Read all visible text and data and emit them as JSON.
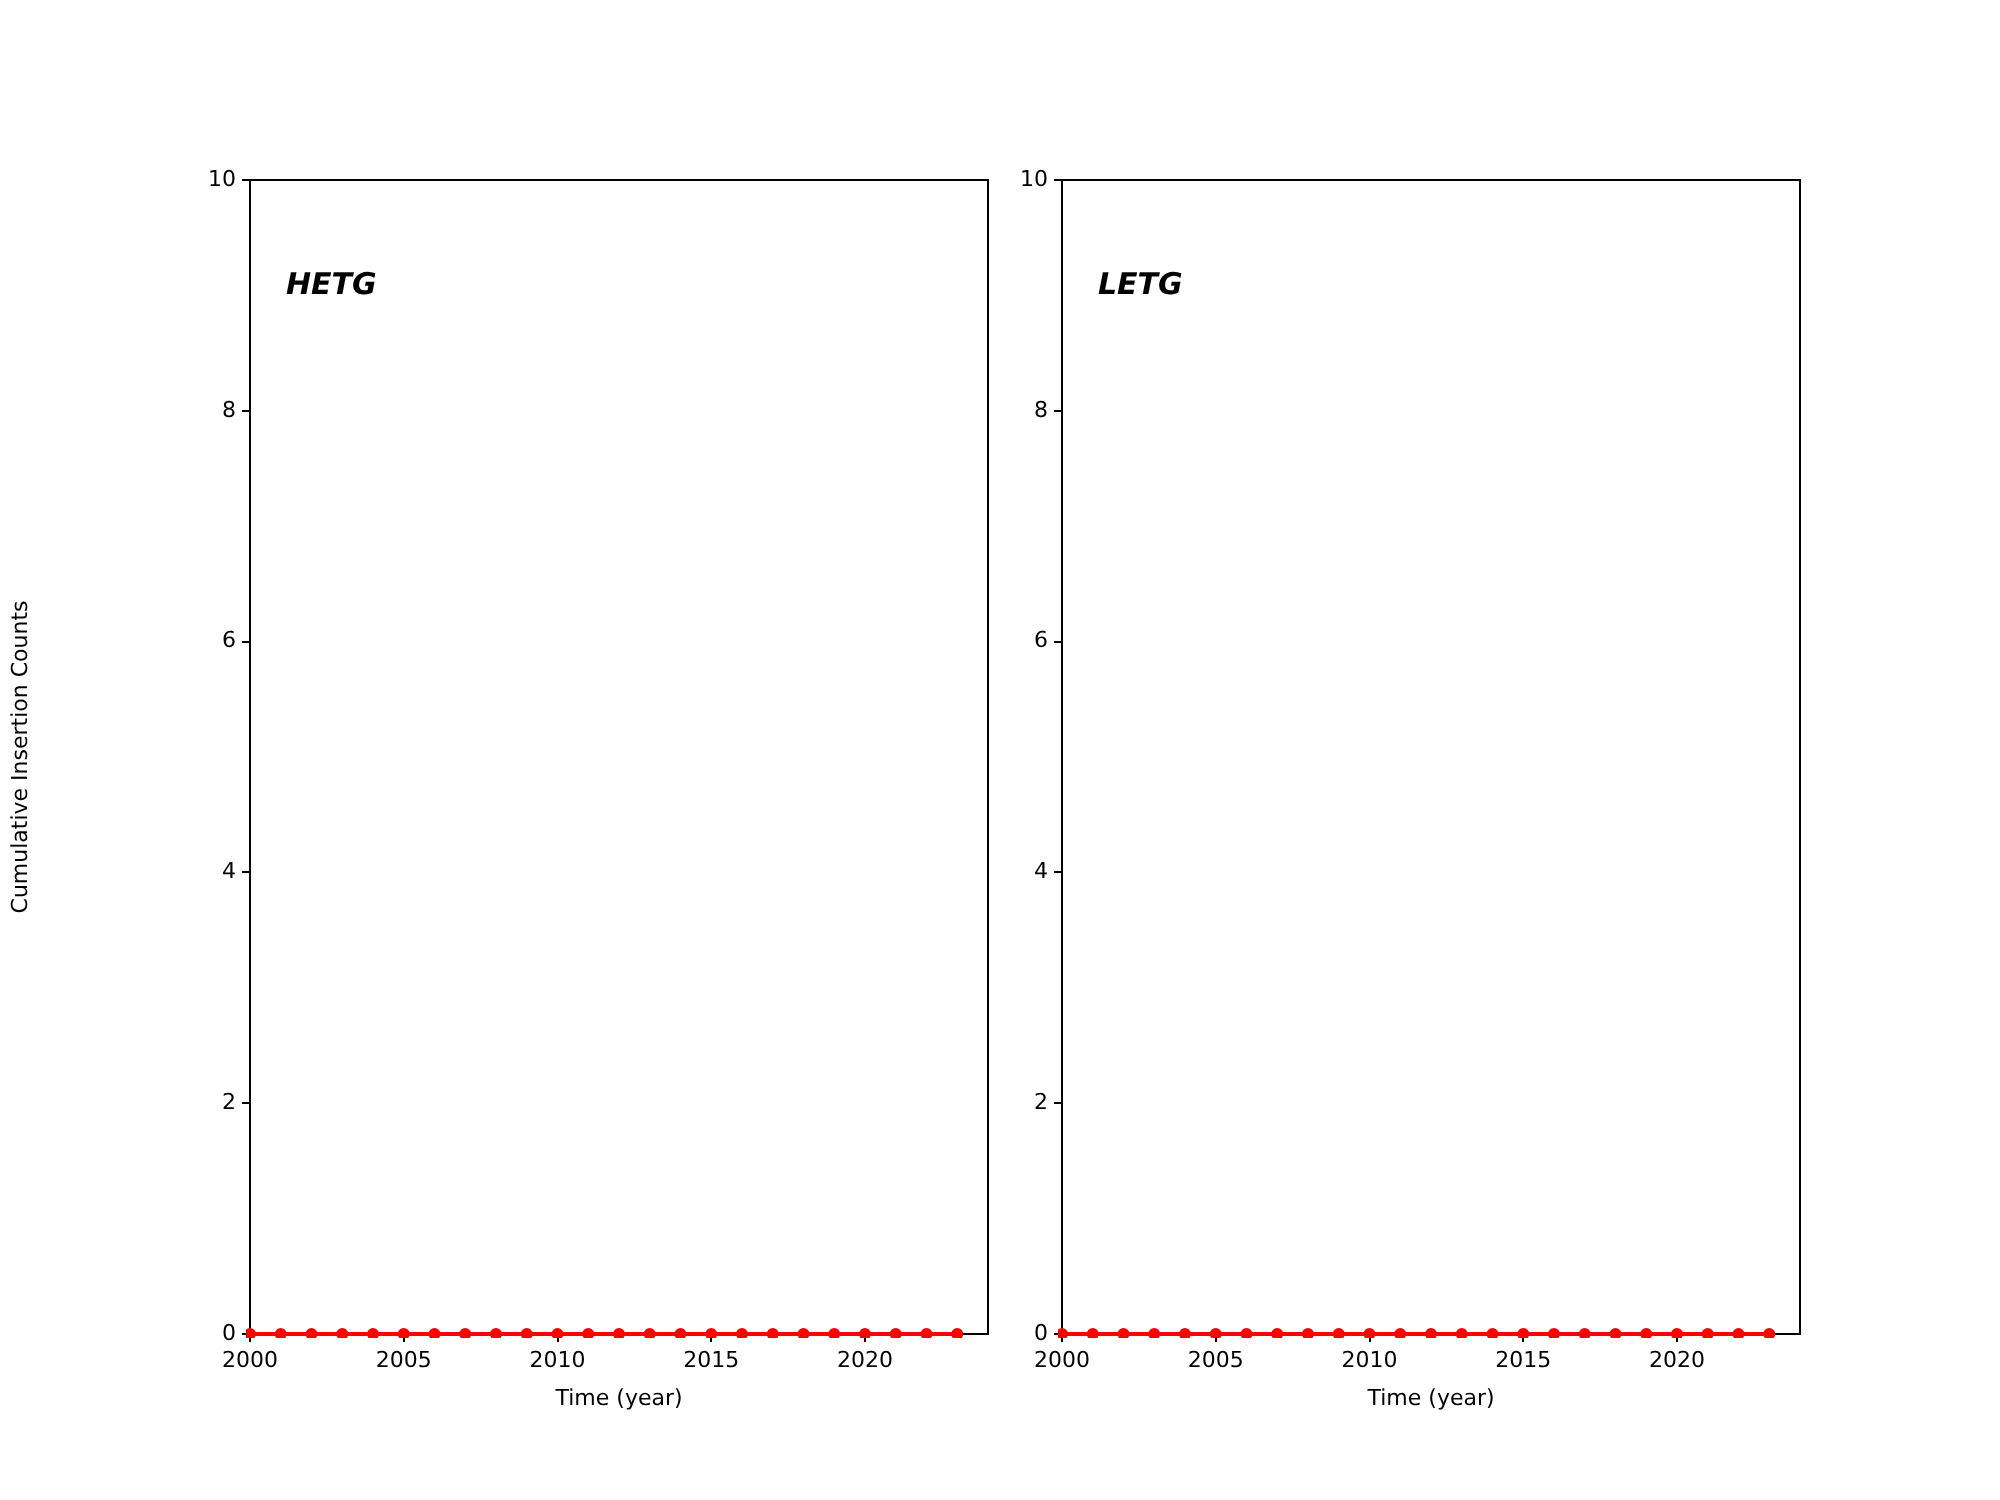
{
  "chart_data": [
    {
      "type": "line",
      "annotations": [
        "HETG"
      ],
      "xlabel": "Time (year)",
      "ylabel": "Cumulative Insertion Counts",
      "xlim": [
        2000,
        2024
      ],
      "xticks": [
        2000,
        2005,
        2010,
        2015,
        2020
      ],
      "ylim": [
        0,
        10
      ],
      "yticks": [
        0,
        2,
        4,
        6,
        8,
        10
      ],
      "grid": false,
      "legend": false,
      "marker": "circle",
      "series": [
        {
          "color": "#ff0000",
          "x": [
            2000,
            2001,
            2002,
            2003,
            2004,
            2005,
            2006,
            2007,
            2008,
            2009,
            2010,
            2011,
            2012,
            2013,
            2014,
            2015,
            2016,
            2017,
            2018,
            2019,
            2020,
            2021,
            2022,
            2023
          ],
          "values": [
            0,
            0,
            0,
            0,
            0,
            0,
            0,
            0,
            0,
            0,
            0,
            0,
            0,
            0,
            0,
            0,
            0,
            0,
            0,
            0,
            0,
            0,
            0,
            0
          ]
        }
      ]
    },
    {
      "type": "line",
      "annotations": [
        "LETG"
      ],
      "xlabel": "Time (year)",
      "xlim": [
        2000,
        2024
      ],
      "xticks": [
        2000,
        2005,
        2010,
        2015,
        2020
      ],
      "ylim": [
        0,
        10
      ],
      "yticks": [
        0,
        2,
        4,
        6,
        8,
        10
      ],
      "grid": false,
      "legend": false,
      "marker": "circle",
      "series": [
        {
          "color": "#ff0000",
          "x": [
            2000,
            2001,
            2002,
            2003,
            2004,
            2005,
            2006,
            2007,
            2008,
            2009,
            2010,
            2011,
            2012,
            2013,
            2014,
            2015,
            2016,
            2017,
            2018,
            2019,
            2020,
            2021,
            2022,
            2023
          ],
          "values": [
            0,
            0,
            0,
            0,
            0,
            0,
            0,
            0,
            0,
            0,
            0,
            0,
            0,
            0,
            0,
            0,
            0,
            0,
            0,
            0,
            0,
            0,
            0,
            0
          ]
        }
      ]
    }
  ]
}
